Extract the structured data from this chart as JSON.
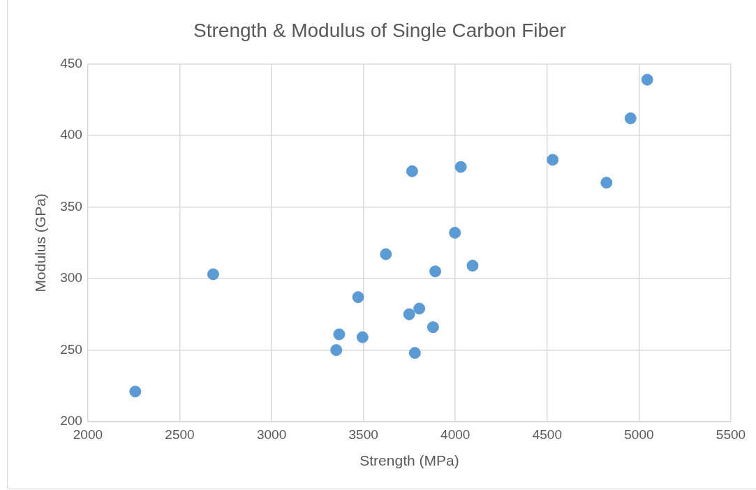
{
  "chart_data": {
    "type": "scatter",
    "title": "Strength & Modulus of Single Carbon Fiber",
    "xlabel": "Strength (MPa)",
    "ylabel": "Modulus (GPa)",
    "x": [
      2258,
      2682,
      3352,
      3368,
      3495,
      3471,
      3622,
      3749,
      3765,
      3780,
      3804,
      3879,
      3891,
      3998,
      4030,
      4094,
      4530,
      4823,
      4954,
      5045
    ],
    "series": [
      {
        "color": "#5b9bd5",
        "values": [
          221,
          303,
          250,
          261,
          259,
          287,
          317,
          275,
          375,
          248,
          279,
          266,
          305,
          332,
          378,
          309,
          383,
          367,
          412,
          439
        ]
      }
    ],
    "xlim": [
      2000,
      5500
    ],
    "xticks": [
      2000,
      2500,
      3000,
      3500,
      4000,
      4500,
      5000,
      5500
    ],
    "ylim": [
      200,
      450
    ],
    "yticks": [
      200,
      250,
      300,
      350,
      400,
      450
    ],
    "grid": true,
    "legend": false,
    "marker": "circle"
  }
}
